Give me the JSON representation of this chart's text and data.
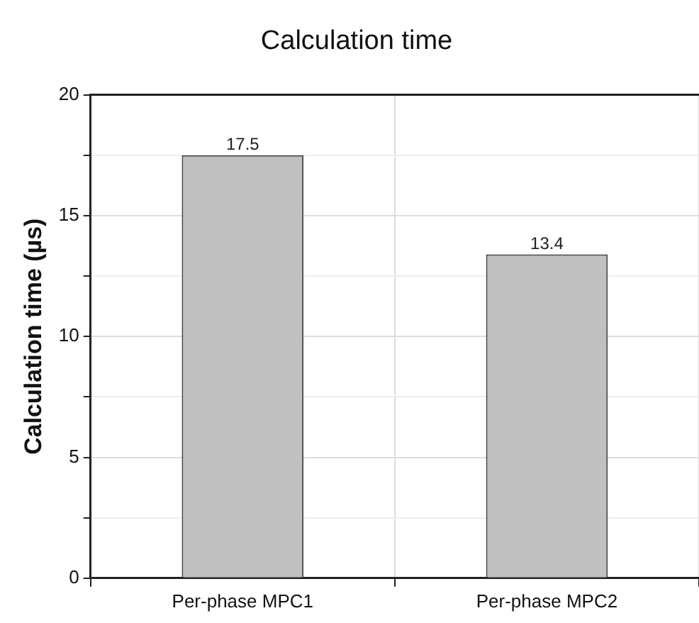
{
  "chart_data": {
    "type": "bar",
    "title": "Calculation time",
    "ylabel": "Calculation time (µs)",
    "categories": [
      "Per-phase MPC1",
      "Per-phase MPC2"
    ],
    "values": [
      17.5,
      13.4
    ],
    "color": "#c0c0c0",
    "ylim": [
      0,
      20
    ],
    "yticks": [
      0,
      {
        "value": 2.5,
        "label": null
      },
      5,
      {
        "value": 7.5,
        "label": null
      },
      10,
      {
        "value": 12.5,
        "label": null
      },
      15,
      {
        "value": 17.5,
        "label": null
      },
      20
    ],
    "grid": true,
    "data_labels": true,
    "legend": false
  }
}
